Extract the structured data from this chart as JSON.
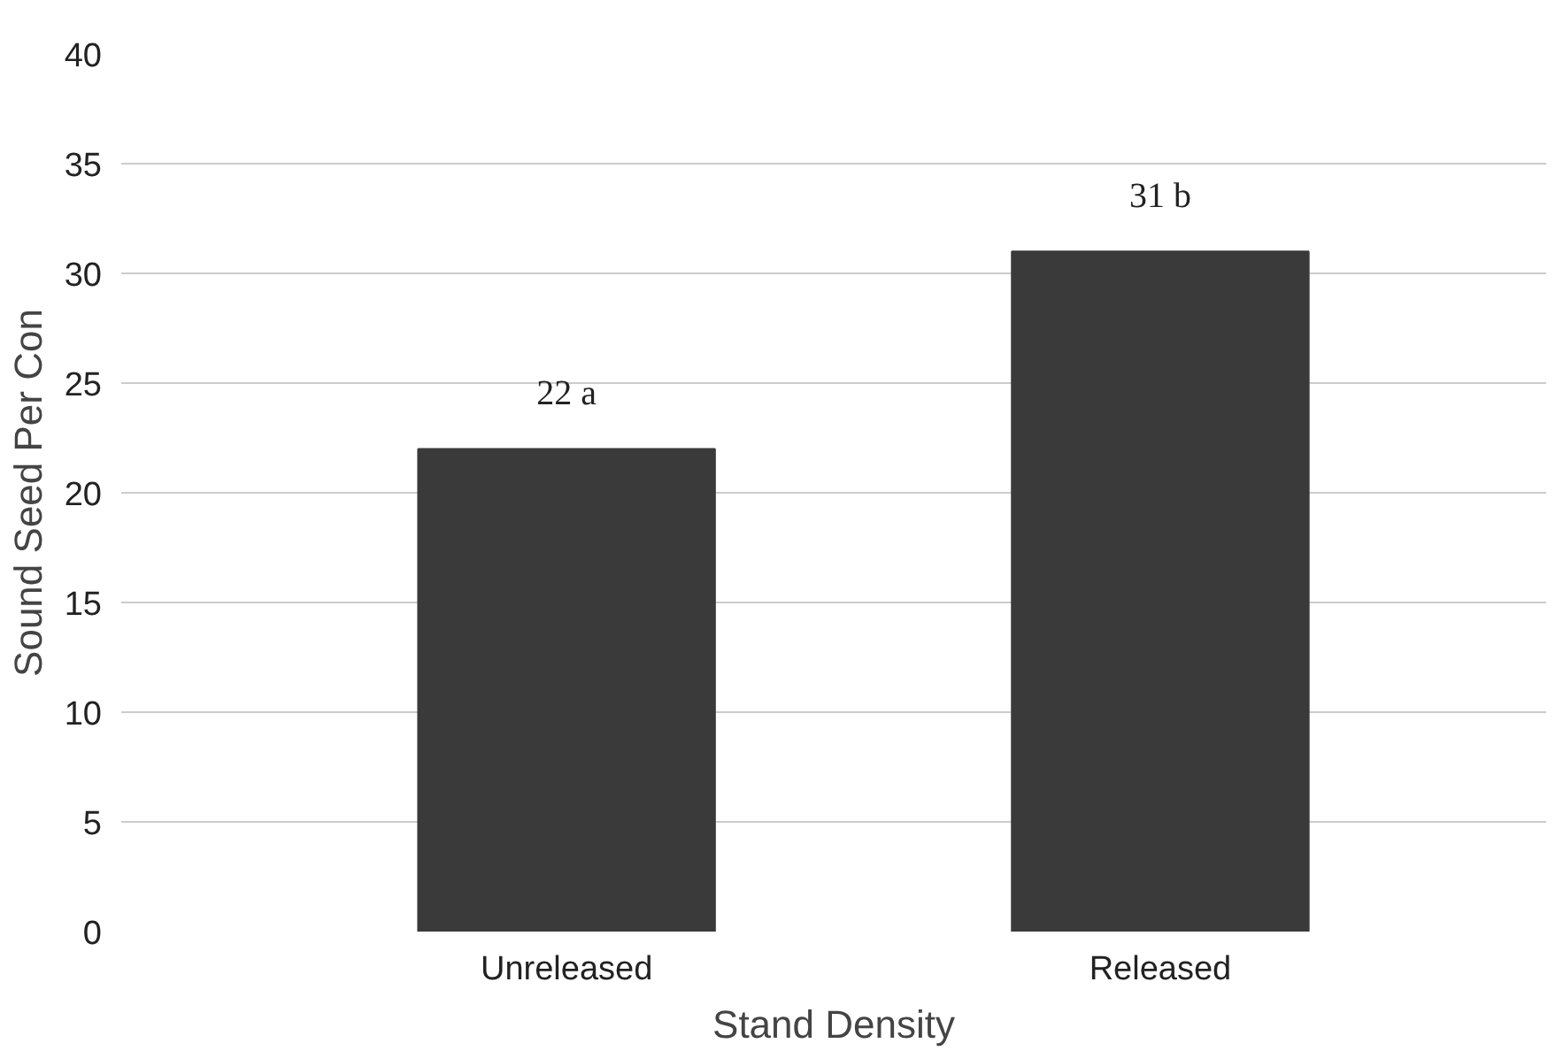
{
  "chart_data": {
    "type": "bar",
    "xlabel": "Stand Density",
    "ylabel": "Sound Seed Per Con",
    "categories": [
      "Unreleased",
      "Released"
    ],
    "values": [
      22,
      31
    ],
    "value_labels": [
      "22 a",
      "31 b"
    ],
    "color": "#3a3a3a",
    "ylim": [
      0,
      40
    ],
    "yticks": [
      0,
      5,
      10,
      15,
      20,
      25,
      30,
      35,
      40
    ],
    "grid": "y"
  }
}
